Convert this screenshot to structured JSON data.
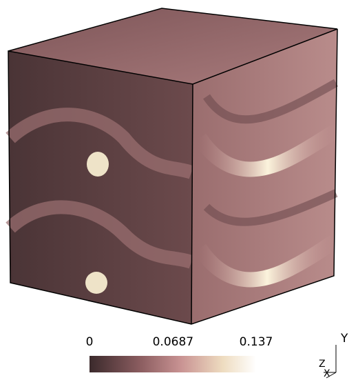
{
  "colorbar": {
    "ticks": [
      0,
      0.0687,
      0.137
    ]
  },
  "axes": {
    "labels": [
      "Y",
      "Z",
      "X"
    ]
  }
}
